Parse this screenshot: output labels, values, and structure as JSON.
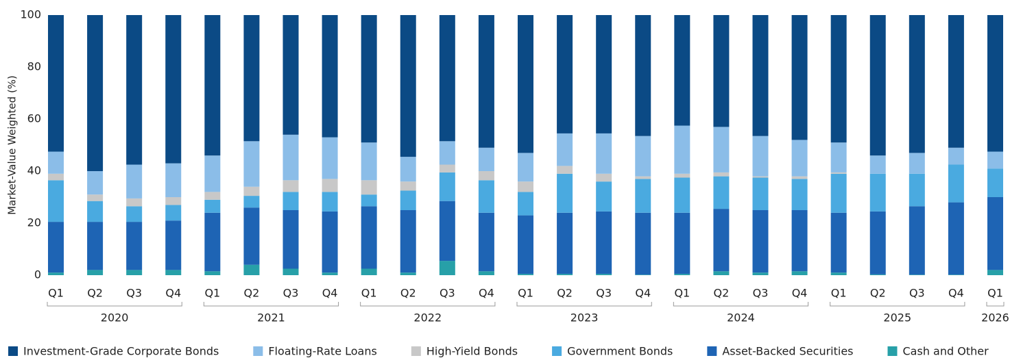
{
  "chart_data": {
    "type": "stacked_bar",
    "y_axis_label": "Market-Value Weighted (%)",
    "categories": [
      "Q1",
      "Q2",
      "Q3",
      "Q4",
      "Q1",
      "Q2",
      "Q3",
      "Q4",
      "Q1",
      "Q2",
      "Q3",
      "Q4",
      "Q1",
      "Q2",
      "Q3",
      "Q4",
      "Q1",
      "Q2",
      "Q3",
      "Q4",
      "Q1",
      "Q2",
      "Q3",
      "Q4",
      "Q1"
    ],
    "groups": [
      {
        "label": "2020",
        "size": 4
      },
      {
        "label": "2021",
        "size": 4
      },
      {
        "label": "2022",
        "size": 4
      },
      {
        "label": "2023",
        "size": 4
      },
      {
        "label": "2024",
        "size": 4
      },
      {
        "label": "2025",
        "size": 4
      },
      {
        "label": "2026",
        "size": 1
      }
    ],
    "ylim": [
      0,
      100
    ],
    "yticks": [
      0,
      20,
      40,
      60,
      80,
      100
    ],
    "grid": false,
    "legend": "bottom",
    "series": [
      {
        "name": "Investment-Grade Corporate Bonds",
        "color": "#0b4a85",
        "values": [
          52.5,
          60,
          57.5,
          57,
          54,
          48.5,
          46,
          47,
          49,
          54.5,
          48.5,
          51,
          53,
          45.5,
          45.5,
          46.5,
          42.5,
          43,
          46.5,
          48,
          49,
          54,
          53,
          51,
          52.5
        ]
      },
      {
        "name": "Floating-Rate Loans",
        "color": "#8bbde8",
        "values": [
          8.5,
          9,
          13,
          13,
          14,
          17.5,
          17.5,
          16,
          14.5,
          9.5,
          9,
          9,
          11,
          12.5,
          15.5,
          15.5,
          18.5,
          17.5,
          15.5,
          14,
          11.5,
          7,
          8,
          6.5,
          6.5
        ]
      },
      {
        "name": "High-Yield Bonds",
        "color": "#c8c8c8",
        "values": [
          2.5,
          2.5,
          3,
          3,
          3,
          3.5,
          4.5,
          5,
          5.5,
          3.5,
          3,
          3.5,
          4,
          3,
          3,
          1,
          1.5,
          1.5,
          0.5,
          1,
          0.5,
          0,
          0,
          0,
          0
        ]
      },
      {
        "name": "Government Bonds",
        "color": "#4aaae0",
        "values": [
          16,
          8,
          6,
          6,
          5,
          4.5,
          7,
          7.5,
          4.5,
          7.5,
          11,
          12.5,
          9,
          15,
          11.5,
          13,
          13.5,
          12.5,
          12.5,
          12,
          15,
          14.5,
          12.5,
          14.5,
          11
        ]
      },
      {
        "name": "Asset-Backed Securities",
        "color": "#1e64b4",
        "values": [
          19.5,
          18.5,
          18.5,
          19,
          22.5,
          22,
          22.5,
          23.5,
          24,
          24,
          23,
          22.5,
          22.5,
          23.5,
          24,
          23.8,
          23.5,
          24,
          24,
          23.5,
          23,
          24.2,
          26.3,
          27.8,
          28
        ]
      },
      {
        "name": "Cash and Other",
        "color": "#27a0a8",
        "values": [
          1,
          2,
          2,
          2,
          1.5,
          4,
          2.5,
          1,
          2.5,
          1,
          5.5,
          1.5,
          0.5,
          0.5,
          0.5,
          0.2,
          0.5,
          1.5,
          1,
          1.5,
          1,
          0.3,
          0.2,
          0.2,
          2
        ]
      }
    ]
  }
}
